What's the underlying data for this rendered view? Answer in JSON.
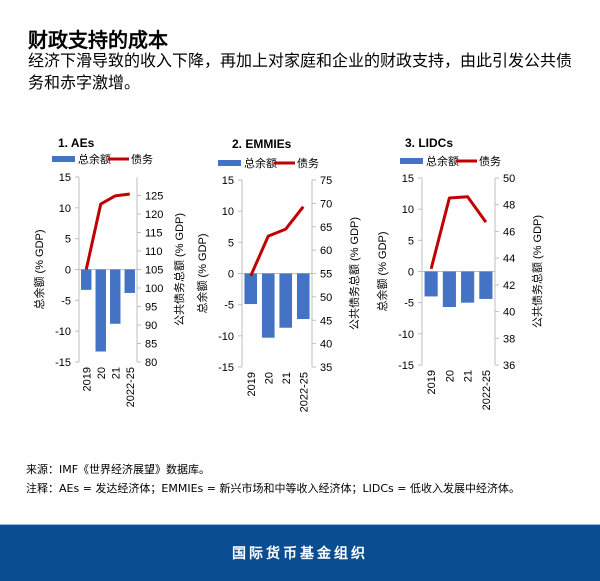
{
  "header": {
    "title": "财政支持的成本",
    "subtitle": "经济下滑导致的收入下降，再加上对家庭和企业的财政支持，由此引发公共债务和赤字激增。"
  },
  "colors": {
    "balance": "#4472c4",
    "debt": "#c00000",
    "footer": "#0b4d91"
  },
  "legend": {
    "balance": "总余额",
    "debt": "债务"
  },
  "chart_data": [
    {
      "type": "bar+line",
      "title": "1. AEs",
      "categories": [
        "2019",
        "20",
        "21",
        "2022-25"
      ],
      "ylabel_left": "总余额 (% GDP)",
      "ylabel_right": "公共债务总额 (% GDP)",
      "ylim_left": [
        -15,
        15
      ],
      "yticks_left": [
        -15,
        -10,
        -5,
        0,
        5,
        10,
        15
      ],
      "ylim_right": [
        80,
        130
      ],
      "yticks_right": [
        80,
        85,
        90,
        95,
        100,
        105,
        110,
        115,
        120,
        125
      ],
      "series": [
        {
          "name": "总余额",
          "type": "bar",
          "axis": "left",
          "values": [
            -3.3,
            -13.3,
            -8.8,
            -3.8
          ]
        },
        {
          "name": "债务",
          "type": "line",
          "axis": "right",
          "values": [
            105.0,
            122.7,
            124.9,
            125.4
          ]
        }
      ]
    },
    {
      "type": "bar+line",
      "title": "2. EMMIEs",
      "categories": [
        "2019",
        "20",
        "21",
        "2022-25"
      ],
      "ylabel_left": "总余额 (% GDP)",
      "ylabel_right": "公共债务总额 (% GDP)",
      "ylim_left": [
        -15,
        15
      ],
      "yticks_left": [
        -15,
        -10,
        -5,
        0,
        5,
        10,
        15
      ],
      "ylim_right": [
        35,
        75
      ],
      "yticks_right": [
        35,
        40,
        45,
        50,
        55,
        60,
        65,
        70,
        75
      ],
      "series": [
        {
          "name": "总余额",
          "type": "bar",
          "axis": "left",
          "values": [
            -4.9,
            -10.3,
            -8.7,
            -7.3
          ]
        },
        {
          "name": "债务",
          "type": "line",
          "axis": "right",
          "values": [
            54.5,
            63.0,
            64.5,
            69.3
          ]
        }
      ]
    },
    {
      "type": "bar+line",
      "title": "3. LIDCs",
      "categories": [
        "2019",
        "20",
        "21",
        "2022-25"
      ],
      "ylabel_left": "总余额 (% GDP)",
      "ylabel_right": "公共债务总额 (% GDP)",
      "ylim_left": [
        -15,
        15
      ],
      "yticks_left": [
        -15,
        -10,
        -5,
        0,
        5,
        10,
        15
      ],
      "ylim_right": [
        36,
        50
      ],
      "yticks_right": [
        36,
        38,
        40,
        42,
        44,
        46,
        48,
        50
      ],
      "series": [
        {
          "name": "总余额",
          "type": "bar",
          "axis": "left",
          "values": [
            -4.0,
            -5.7,
            -5.0,
            -4.4
          ]
        },
        {
          "name": "债务",
          "type": "line",
          "axis": "right",
          "values": [
            43.2,
            48.5,
            48.6,
            46.7
          ]
        }
      ]
    }
  ],
  "notes": {
    "source": "来源：IMF《世界经济展望》数据库。",
    "note": "注释：AEs = 发达经济体；EMMIEs = 新兴市场和中等收入经济体；LIDCs = 低收入发展中经济体。"
  },
  "footer": {
    "org": "国际货币基金组织"
  }
}
